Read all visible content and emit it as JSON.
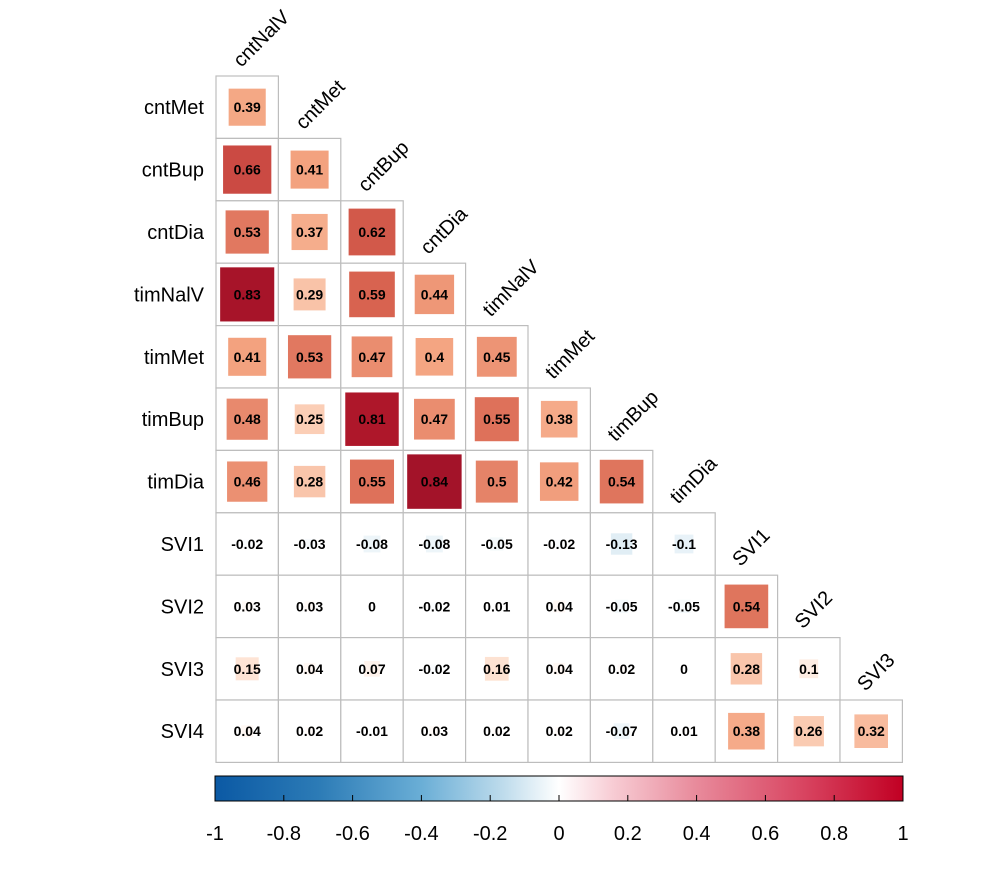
{
  "chart_data": {
    "type": "heatmap",
    "variables": [
      "cntNalV",
      "cntMet",
      "cntBup",
      "cntDia",
      "timNalV",
      "timMet",
      "timBup",
      "timDia",
      "SVI1",
      "SVI2",
      "SVI3",
      "SVI4"
    ],
    "rows": [
      "cntMet",
      "cntBup",
      "cntDia",
      "timNalV",
      "timMet",
      "timBup",
      "timDia",
      "SVI1",
      "SVI2",
      "SVI3",
      "SVI4"
    ],
    "columns": [
      "cntNalV",
      "cntMet",
      "cntBup",
      "cntDia",
      "timNalV",
      "timMet",
      "timBup",
      "timDia",
      "SVI1",
      "SVI2",
      "SVI3"
    ],
    "values": [
      [
        0.39
      ],
      [
        0.66,
        0.41
      ],
      [
        0.53,
        0.37,
        0.62
      ],
      [
        0.83,
        0.29,
        0.59,
        0.44
      ],
      [
        0.41,
        0.53,
        0.47,
        0.4,
        0.45
      ],
      [
        0.48,
        0.25,
        0.81,
        0.47,
        0.55,
        0.38
      ],
      [
        0.46,
        0.28,
        0.55,
        0.84,
        0.5,
        0.42,
        0.54
      ],
      [
        -0.02,
        -0.03,
        -0.08,
        -0.08,
        -0.05,
        -0.02,
        -0.13,
        -0.1
      ],
      [
        0.03,
        0.03,
        0,
        -0.02,
        0.01,
        0.04,
        -0.05,
        -0.05,
        0.54
      ],
      [
        0.15,
        0.04,
        0.07,
        -0.02,
        0.16,
        0.04,
        0.02,
        0,
        0.28,
        0.1
      ],
      [
        0.04,
        0.02,
        -0.01,
        0.03,
        0.02,
        0.02,
        -0.07,
        0.01,
        0.38,
        0.26,
        0.32
      ]
    ],
    "color_scale": {
      "range": [
        -1,
        1
      ],
      "ticks": [
        "-1",
        "-0.8",
        "-0.6",
        "-0.4",
        "-0.2",
        "0",
        "0.2",
        "0.4",
        "0.6",
        "0.8",
        "1"
      ],
      "colors": [
        "#053061",
        "#2166ac",
        "#4393c3",
        "#92c5de",
        "#d1e5f0",
        "#ffffff",
        "#fddbc7",
        "#f4a582",
        "#d6604d",
        "#b2182b",
        "#67001f"
      ]
    },
    "legend_placement": "bottom"
  }
}
